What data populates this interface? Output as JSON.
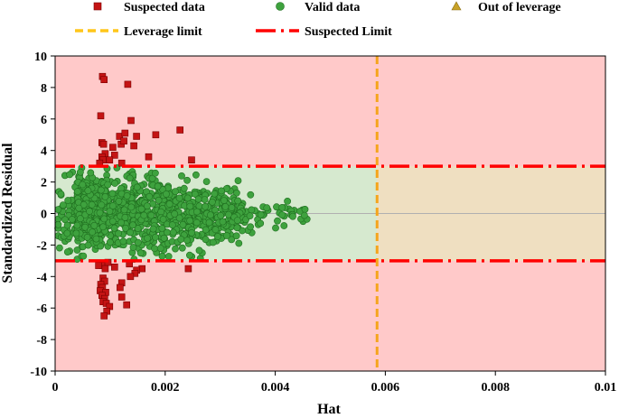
{
  "chart_data": {
    "type": "scatter",
    "title": "",
    "xlabel": "Hat",
    "ylabel": "Standardized Residual",
    "xlim": [
      0,
      0.01
    ],
    "ylim": [
      -10,
      10
    ],
    "xticks": [
      0,
      0.002,
      0.004,
      0.006,
      0.008,
      0.01
    ],
    "xtick_labels": [
      "0",
      "0.002",
      "0.004",
      "0.006",
      "0.008",
      "0.01"
    ],
    "yticks": [
      -10,
      -8,
      -6,
      -4,
      -2,
      0,
      2,
      4,
      6,
      8,
      10
    ],
    "ytick_labels": [
      "-10",
      "-8",
      "-6",
      "-4",
      "-2",
      "0",
      "2",
      "4",
      "6",
      "8",
      "10"
    ],
    "leverage_limit": 0.00585,
    "suspected_limit": 3,
    "colors": {
      "outer_region": "#ffc9c9",
      "valid_region": "#d6e9cf",
      "leverage_region": "#efdfc1",
      "leverage_line": "#f5a51c",
      "suspected_line": "#ff0000",
      "suspected_marker": "#c41414",
      "valid_marker": "#3ea23e",
      "out_marker": "#c9a227",
      "zero_line": "#b0b0b0"
    },
    "legend": [
      {
        "label": "Suspected data",
        "marker": "square"
      },
      {
        "label": "Valid data",
        "marker": "circle"
      },
      {
        "label": "Out of leverage",
        "marker": "triangle"
      },
      {
        "label": "Leverage limit",
        "marker": "dash-line"
      },
      {
        "label": "Suspected Limit",
        "marker": "dash-dot-line"
      }
    ],
    "series": [
      {
        "name": "Suspected data",
        "marker": "square",
        "points": [
          [
            0.00086,
            8.7
          ],
          [
            0.00089,
            8.5
          ],
          [
            0.00132,
            8.2
          ],
          [
            0.00083,
            6.2
          ],
          [
            0.00138,
            5.9
          ],
          [
            0.00183,
            5.0
          ],
          [
            0.00227,
            5.3
          ],
          [
            0.00148,
            4.9
          ],
          [
            0.00117,
            4.9
          ],
          [
            0.00127,
            5.1
          ],
          [
            0.00085,
            4.5
          ],
          [
            0.00088,
            4.4
          ],
          [
            0.0012,
            4.4
          ],
          [
            0.00125,
            4.6
          ],
          [
            0.00143,
            4.3
          ],
          [
            0.00105,
            4.2
          ],
          [
            0.00091,
            3.8
          ],
          [
            0.00085,
            3.6
          ],
          [
            0.00087,
            3.4
          ],
          [
            0.0017,
            3.6
          ],
          [
            0.00108,
            3.7
          ],
          [
            0.00099,
            3.4
          ],
          [
            0.00248,
            3.4
          ],
          [
            0.00121,
            3.2
          ],
          [
            0.00081,
            3.2
          ],
          [
            0.00086,
            -3.3
          ],
          [
            0.00096,
            -3.1
          ],
          [
            0.00091,
            -3.5
          ],
          [
            0.00079,
            -3.3
          ],
          [
            0.00135,
            -3.2
          ],
          [
            0.00108,
            -3.4
          ],
          [
            0.00242,
            -3.5
          ],
          [
            0.00158,
            -3.5
          ],
          [
            0.00148,
            -3.6
          ],
          [
            0.00145,
            -3.8
          ],
          [
            0.00137,
            -4.0
          ],
          [
            0.00087,
            -4.1
          ],
          [
            0.0009,
            -4.3
          ],
          [
            0.00083,
            -4.5
          ],
          [
            0.00086,
            -4.7
          ],
          [
            0.00082,
            -4.9
          ],
          [
            0.00121,
            -4.4
          ],
          [
            0.00118,
            -4.7
          ],
          [
            0.00092,
            -5.0
          ],
          [
            0.00085,
            -5.2
          ],
          [
            0.0009,
            -5.4
          ],
          [
            0.00121,
            -5.3
          ],
          [
            0.00087,
            -5.6
          ],
          [
            0.00093,
            -5.7
          ],
          [
            0.00099,
            -5.9
          ],
          [
            0.0013,
            -5.8
          ],
          [
            0.00094,
            -6.2
          ],
          [
            0.00089,
            -6.5
          ]
        ]
      },
      {
        "name": "Valid data",
        "marker": "circle",
        "generated": {
          "count": 1150,
          "x_range": [
            5e-05,
            0.0046
          ],
          "y_range": [
            -2.9,
            2.9
          ],
          "note": "dense cloud, spread narrows as Hat increases"
        }
      },
      {
        "name": "Out of leverage",
        "marker": "triangle",
        "points": []
      }
    ]
  }
}
